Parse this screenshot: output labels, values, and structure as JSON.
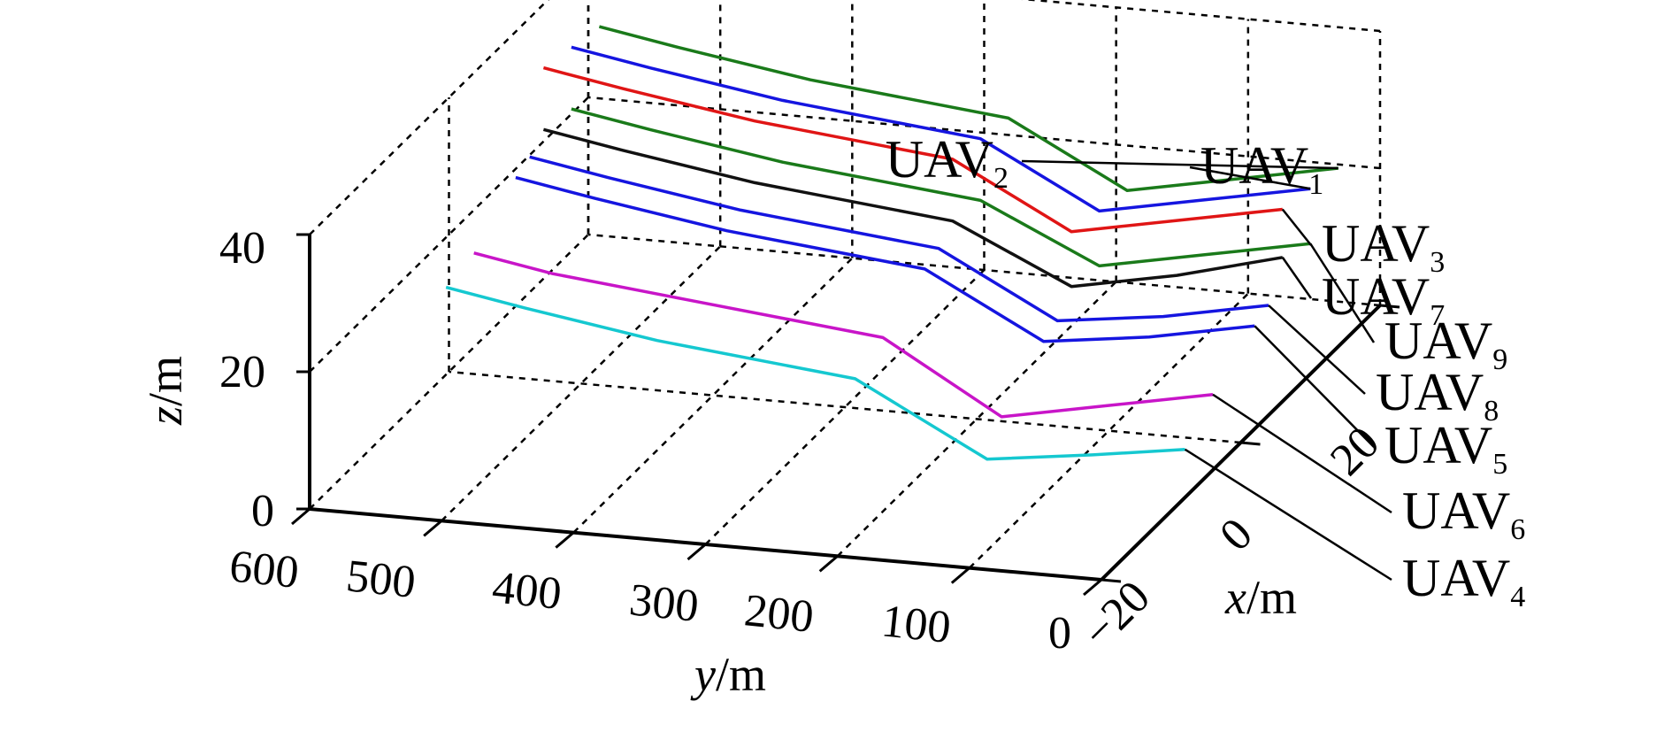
{
  "chart_data": {
    "type": "line",
    "projection": "3d",
    "title": "",
    "xlabel": "x",
    "xunit": "/m",
    "ylabel": "y",
    "yunit": "/m",
    "zlabel": "z",
    "zunit": "/m",
    "xlim": [
      -20,
      20
    ],
    "ylim": [
      0,
      600
    ],
    "zlim": [
      0,
      40
    ],
    "x_ticks": [
      "−20",
      "0",
      "20"
    ],
    "y_ticks": [
      "600",
      "500",
      "400",
      "300",
      "200",
      "100",
      "0"
    ],
    "z_ticks": [
      "40",
      "20",
      "0"
    ],
    "grid": true,
    "grid_style": "dashed",
    "legend": "leader-line labels at right",
    "series": [
      {
        "label": "UAV",
        "sub": "1",
        "color": "#1515e0",
        "points": [
          [
            10,
            0,
            27
          ],
          [
            10,
            80,
            24
          ],
          [
            10,
            160,
            21
          ],
          [
            10,
            250,
            30
          ],
          [
            10,
            400,
            33
          ],
          [
            10,
            500,
            36
          ],
          [
            10,
            560,
            38
          ]
        ]
      },
      {
        "label": "UAV",
        "sub": "2",
        "color": "#1a7a1a",
        "points": [
          [
            14,
            0,
            26
          ],
          [
            14,
            80,
            23
          ],
          [
            14,
            160,
            20
          ],
          [
            14,
            250,
            29
          ],
          [
            14,
            400,
            32
          ],
          [
            14,
            500,
            35
          ],
          [
            14,
            560,
            37
          ]
        ]
      },
      {
        "label": "UAV",
        "sub": "3",
        "color": "#e01515",
        "points": [
          [
            6,
            0,
            28
          ],
          [
            6,
            80,
            25
          ],
          [
            6,
            160,
            22
          ],
          [
            6,
            250,
            31
          ],
          [
            6,
            400,
            34
          ],
          [
            6,
            500,
            37
          ],
          [
            6,
            560,
            39
          ]
        ]
      },
      {
        "label": "UAV",
        "sub": "4",
        "color": "#15c8d0",
        "points": [
          [
            -8,
            0,
            7
          ],
          [
            -8,
            70,
            5
          ],
          [
            -8,
            150,
            3
          ],
          [
            -8,
            250,
            13
          ],
          [
            -8,
            400,
            16
          ],
          [
            -8,
            500,
            19
          ],
          [
            -8,
            560,
            21
          ]
        ]
      },
      {
        "label": "UAV",
        "sub": "5",
        "color": "#1515e0",
        "points": [
          [
            2,
            0,
            15
          ],
          [
            2,
            80,
            12
          ],
          [
            2,
            160,
            10
          ],
          [
            2,
            250,
            19
          ],
          [
            2,
            400,
            22
          ],
          [
            2,
            500,
            25
          ],
          [
            2,
            560,
            27
          ]
        ]
      },
      {
        "label": "UAV",
        "sub": "6",
        "color": "#c815c8",
        "points": [
          [
            -4,
            0,
            11
          ],
          [
            -4,
            80,
            8
          ],
          [
            -4,
            160,
            5
          ],
          [
            -4,
            250,
            15
          ],
          [
            -4,
            400,
            18
          ],
          [
            -4,
            500,
            20
          ],
          [
            -4,
            560,
            22
          ]
        ]
      },
      {
        "label": "UAV",
        "sub": "7",
        "color": "#111111",
        "points": [
          [
            6,
            0,
            21
          ],
          [
            6,
            80,
            17
          ],
          [
            6,
            160,
            14
          ],
          [
            6,
            250,
            22
          ],
          [
            6,
            400,
            25
          ],
          [
            6,
            500,
            28
          ],
          [
            6,
            560,
            30
          ]
        ]
      },
      {
        "label": "UAV",
        "sub": "8",
        "color": "#1515e0",
        "points": [
          [
            4,
            0,
            16
          ],
          [
            4,
            80,
            13
          ],
          [
            4,
            160,
            11
          ],
          [
            4,
            250,
            20
          ],
          [
            4,
            400,
            23
          ],
          [
            4,
            500,
            26
          ],
          [
            4,
            560,
            28
          ]
        ]
      },
      {
        "label": "UAV",
        "sub": "9",
        "color": "#1a7a1a",
        "points": [
          [
            10,
            0,
            19
          ],
          [
            10,
            80,
            16
          ],
          [
            10,
            160,
            13
          ],
          [
            10,
            250,
            21
          ],
          [
            10,
            400,
            24
          ],
          [
            10,
            500,
            27
          ],
          [
            10,
            560,
            29
          ]
        ]
      }
    ]
  }
}
